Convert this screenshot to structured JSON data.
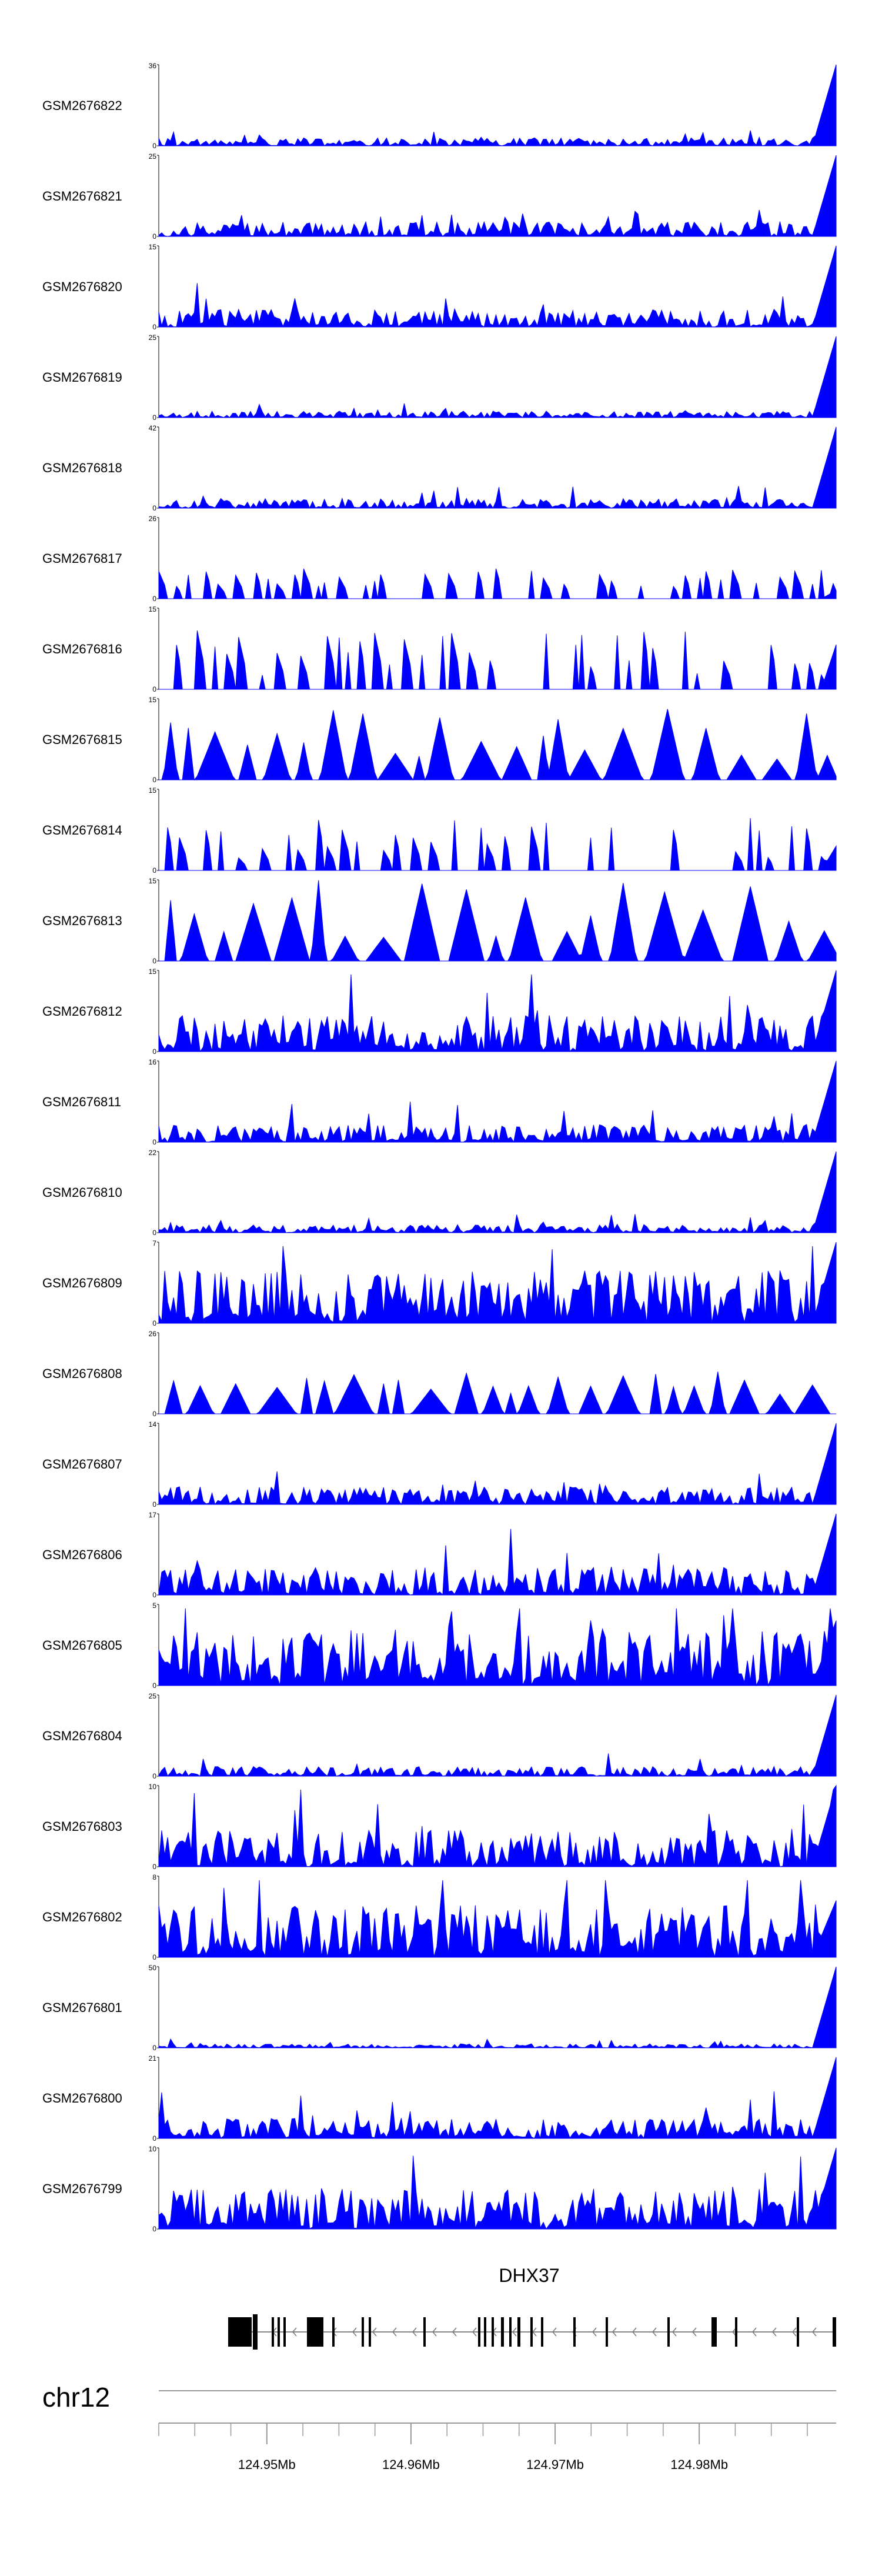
{
  "chart_data": {
    "type": "area",
    "description_note": "",
    "color": "#0000ff",
    "chromosome": "chr12",
    "gene": {
      "name": "DHX37",
      "strand": "-"
    },
    "x_axis": {
      "range_mb": [
        124.9425,
        124.9895
      ],
      "ticks": [
        124.95,
        124.96,
        124.97,
        124.98
      ],
      "tick_labels": [
        "124.95Mb",
        "124.96Mb",
        "124.97Mb",
        "124.98Mb"
      ]
    },
    "tracks": [
      {
        "name": "GSM2676822",
        "ymax": 36,
        "ymin": 0,
        "ymin_label": "0",
        "ymax_label": "36",
        "style": "dense",
        "seed": 11,
        "base": 0.1,
        "tail": 1.0
      },
      {
        "name": "GSM2676821",
        "ymax": 25,
        "ymin": 0,
        "ymin_label": "0",
        "ymax_label": "25",
        "style": "dense",
        "seed": 12,
        "base": 0.18,
        "tail": 1.0
      },
      {
        "name": "GSM2676820",
        "ymax": 15,
        "ymin": 0,
        "ymin_label": "0",
        "ymax_label": "15",
        "style": "dense",
        "seed": 13,
        "base": 0.22,
        "tail": 1.0
      },
      {
        "name": "GSM2676819",
        "ymax": 25,
        "ymin": 0,
        "ymin_label": "0",
        "ymax_label": "25",
        "style": "dense",
        "seed": 14,
        "base": 0.08,
        "tail": 1.0
      },
      {
        "name": "GSM2676818",
        "ymax": 42,
        "ymin": 0,
        "ymin_label": "0",
        "ymax_label": "42",
        "style": "dense",
        "seed": 15,
        "base": 0.12,
        "tail": 1.0
      },
      {
        "name": "GSM2676817",
        "ymax": 26,
        "ymin": 0,
        "ymin_label": "0",
        "ymax_label": "26",
        "style": "spiky",
        "seed": 16,
        "base": 0.25,
        "tail": 0.1
      },
      {
        "name": "GSM2676816",
        "ymax": 15,
        "ymin": 0,
        "ymin_label": "0",
        "ymax_label": "15",
        "style": "spiky",
        "seed": 17,
        "base": 0.6,
        "tail": 0.55
      },
      {
        "name": "GSM2676815",
        "ymax": 15,
        "ymin": 0,
        "ymin_label": "0",
        "ymax_label": "15",
        "style": "triangles",
        "seed": 18,
        "base": 0.7,
        "tail": 0.45
      },
      {
        "name": "GSM2676814",
        "ymax": 15,
        "ymin": 0,
        "ymin_label": "0",
        "ymax_label": "15",
        "style": "spiky",
        "seed": 19,
        "base": 0.5,
        "tail": 0.3
      },
      {
        "name": "GSM2676813",
        "ymax": 15,
        "ymin": 0,
        "ymin_label": "0",
        "ymax_label": "15",
        "style": "triangles",
        "seed": 20,
        "base": 0.8,
        "tail": 0.0
      },
      {
        "name": "GSM2676812",
        "ymax": 15,
        "ymin": 0,
        "ymin_label": "0",
        "ymax_label": "15",
        "style": "dense",
        "seed": 21,
        "base": 0.45,
        "tail": 1.0
      },
      {
        "name": "GSM2676811",
        "ymax": 16,
        "ymin": 0,
        "ymin_label": "0",
        "ymax_label": "16",
        "style": "dense",
        "seed": 22,
        "base": 0.22,
        "tail": 1.0
      },
      {
        "name": "GSM2676810",
        "ymax": 22,
        "ymin": 0,
        "ymin_label": "0",
        "ymax_label": "22",
        "style": "dense",
        "seed": 23,
        "base": 0.1,
        "tail": 1.0
      },
      {
        "name": "GSM2676809",
        "ymax": 7,
        "ymin": 0,
        "ymin_label": "0",
        "ymax_label": "7",
        "style": "dense",
        "seed": 24,
        "base": 0.65,
        "tail": 1.0
      },
      {
        "name": "GSM2676808",
        "ymax": 26,
        "ymin": 0,
        "ymin_label": "0",
        "ymax_label": "26",
        "style": "triangles",
        "seed": 25,
        "base": 0.35,
        "tail": 0.3
      },
      {
        "name": "GSM2676807",
        "ymax": 14,
        "ymin": 0,
        "ymin_label": "0",
        "ymax_label": "14",
        "style": "dense",
        "seed": 26,
        "base": 0.22,
        "tail": 1.0
      },
      {
        "name": "GSM2676806",
        "ymax": 17,
        "ymin": 0,
        "ymin_label": "0",
        "ymax_label": "17",
        "style": "dense",
        "seed": 27,
        "base": 0.35,
        "tail": 1.0
      },
      {
        "name": "GSM2676805",
        "ymax": 5,
        "ymin": 0,
        "ymin_label": "0",
        "ymax_label": "5",
        "style": "dense",
        "seed": 28,
        "base": 0.7,
        "tail": 0.8
      },
      {
        "name": "GSM2676804",
        "ymax": 25,
        "ymin": 0,
        "ymin_label": "0",
        "ymax_label": "25",
        "style": "dense",
        "seed": 29,
        "base": 0.12,
        "tail": 1.0
      },
      {
        "name": "GSM2676803",
        "ymax": 10,
        "ymin": 0,
        "ymin_label": "0",
        "ymax_label": "10",
        "style": "dense",
        "seed": 30,
        "base": 0.45,
        "tail": 1.0
      },
      {
        "name": "GSM2676802",
        "ymax": 8,
        "ymin": 0,
        "ymin_label": "0",
        "ymax_label": "8",
        "style": "dense",
        "seed": 31,
        "base": 0.65,
        "tail": 0.7
      },
      {
        "name": "GSM2676801",
        "ymax": 50,
        "ymin": 0,
        "ymin_label": "0",
        "ymax_label": "50",
        "style": "dense",
        "seed": 32,
        "base": 0.05,
        "tail": 1.0
      },
      {
        "name": "GSM2676800",
        "ymax": 21,
        "ymin": 0,
        "ymin_label": "0",
        "ymax_label": "21",
        "style": "dense",
        "seed": 33,
        "base": 0.25,
        "tail": 1.0
      },
      {
        "name": "GSM2676799",
        "ymax": 10,
        "ymin": 0,
        "ymin_label": "0",
        "ymax_label": "10",
        "style": "dense",
        "seed": 34,
        "base": 0.5,
        "tail": 1.0
      }
    ]
  }
}
